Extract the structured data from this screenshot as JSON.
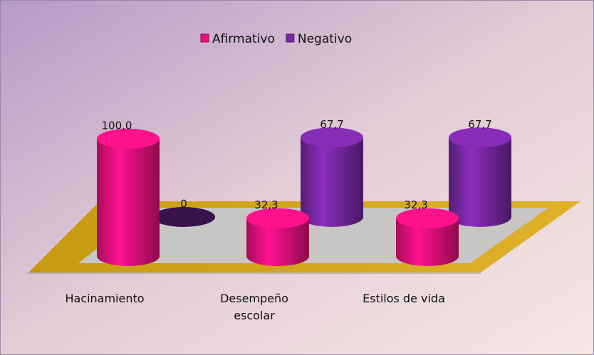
{
  "chart_data": {
    "type": "cylinder-bar",
    "categories": [
      "Hacinamiento",
      "Desempeño escolar",
      "Estilos de vida"
    ],
    "series": [
      {
        "name": "Afirmativo",
        "color": "#f0107f",
        "values": [
          100,
          32.3,
          32.3
        ],
        "value_labels": [
          "100,0",
          "32,3",
          "32,3"
        ]
      },
      {
        "name": "Negativo",
        "color": "#7a28a6",
        "values": [
          0,
          67.7,
          67.7
        ],
        "value_labels": [
          "0",
          "67,7",
          "67,7"
        ]
      }
    ],
    "legend": "top"
  }
}
